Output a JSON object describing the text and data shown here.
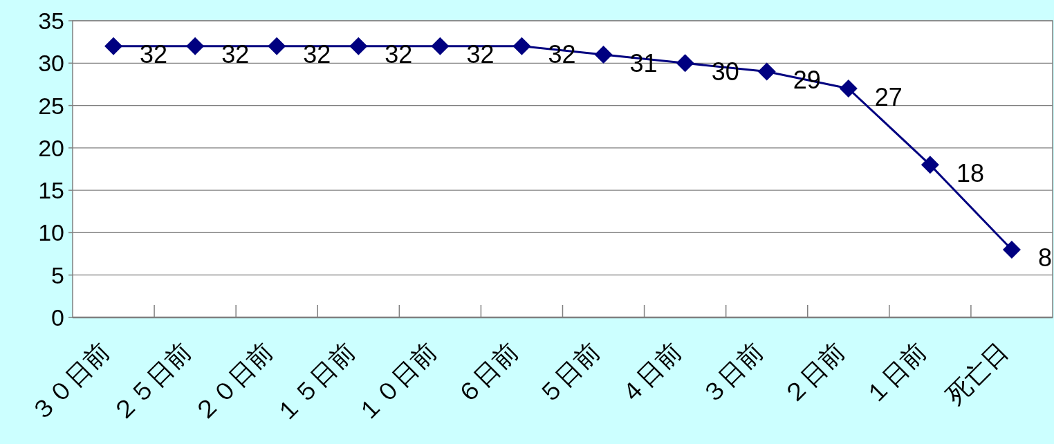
{
  "chart_data": {
    "type": "line",
    "categories": [
      "３０日前",
      "２５日前",
      "２０日前",
      "１５日前",
      "１０日前",
      "６日前",
      "５日前",
      "４日前",
      "３日前",
      "２日前",
      "１日前",
      "死亡日"
    ],
    "values": [
      32,
      32,
      32,
      32,
      32,
      32,
      31,
      30,
      29,
      27,
      18,
      8
    ],
    "color": "#000080",
    "ylim": [
      0,
      35
    ],
    "yticks": [
      0,
      5,
      10,
      15,
      20,
      25,
      30,
      35
    ],
    "grid": "y",
    "marker": "diamond",
    "line_style": "solid",
    "data_labels": true
  }
}
